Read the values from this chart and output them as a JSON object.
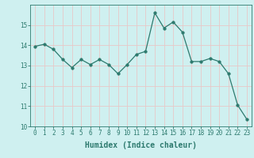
{
  "xlabel": "Humidex (Indice chaleur)",
  "ylabel": "",
  "x_values": [
    0,
    1,
    2,
    3,
    4,
    5,
    6,
    7,
    8,
    9,
    10,
    11,
    12,
    13,
    14,
    15,
    16,
    17,
    18,
    19,
    20,
    21,
    22,
    23
  ],
  "y_values": [
    13.95,
    14.05,
    13.8,
    13.3,
    12.9,
    13.3,
    13.05,
    13.3,
    13.05,
    12.6,
    13.05,
    13.55,
    13.7,
    15.6,
    14.85,
    15.15,
    14.65,
    13.2,
    13.2,
    13.35,
    13.2,
    12.6,
    11.05,
    10.35
  ],
  "line_color": "#2d7a6e",
  "marker": "o",
  "marker_size": 2.5,
  "bg_color": "#cff0f0",
  "grid_color": "#e8c8c8",
  "tick_color": "#2d7a6e",
  "label_color": "#2d7a6e",
  "ylim": [
    10,
    16
  ],
  "yticks": [
    10,
    11,
    12,
    13,
    14,
    15
  ],
  "xlim": [
    -0.5,
    23.5
  ],
  "axis_fontsize": 7,
  "tick_fontsize": 5.5
}
